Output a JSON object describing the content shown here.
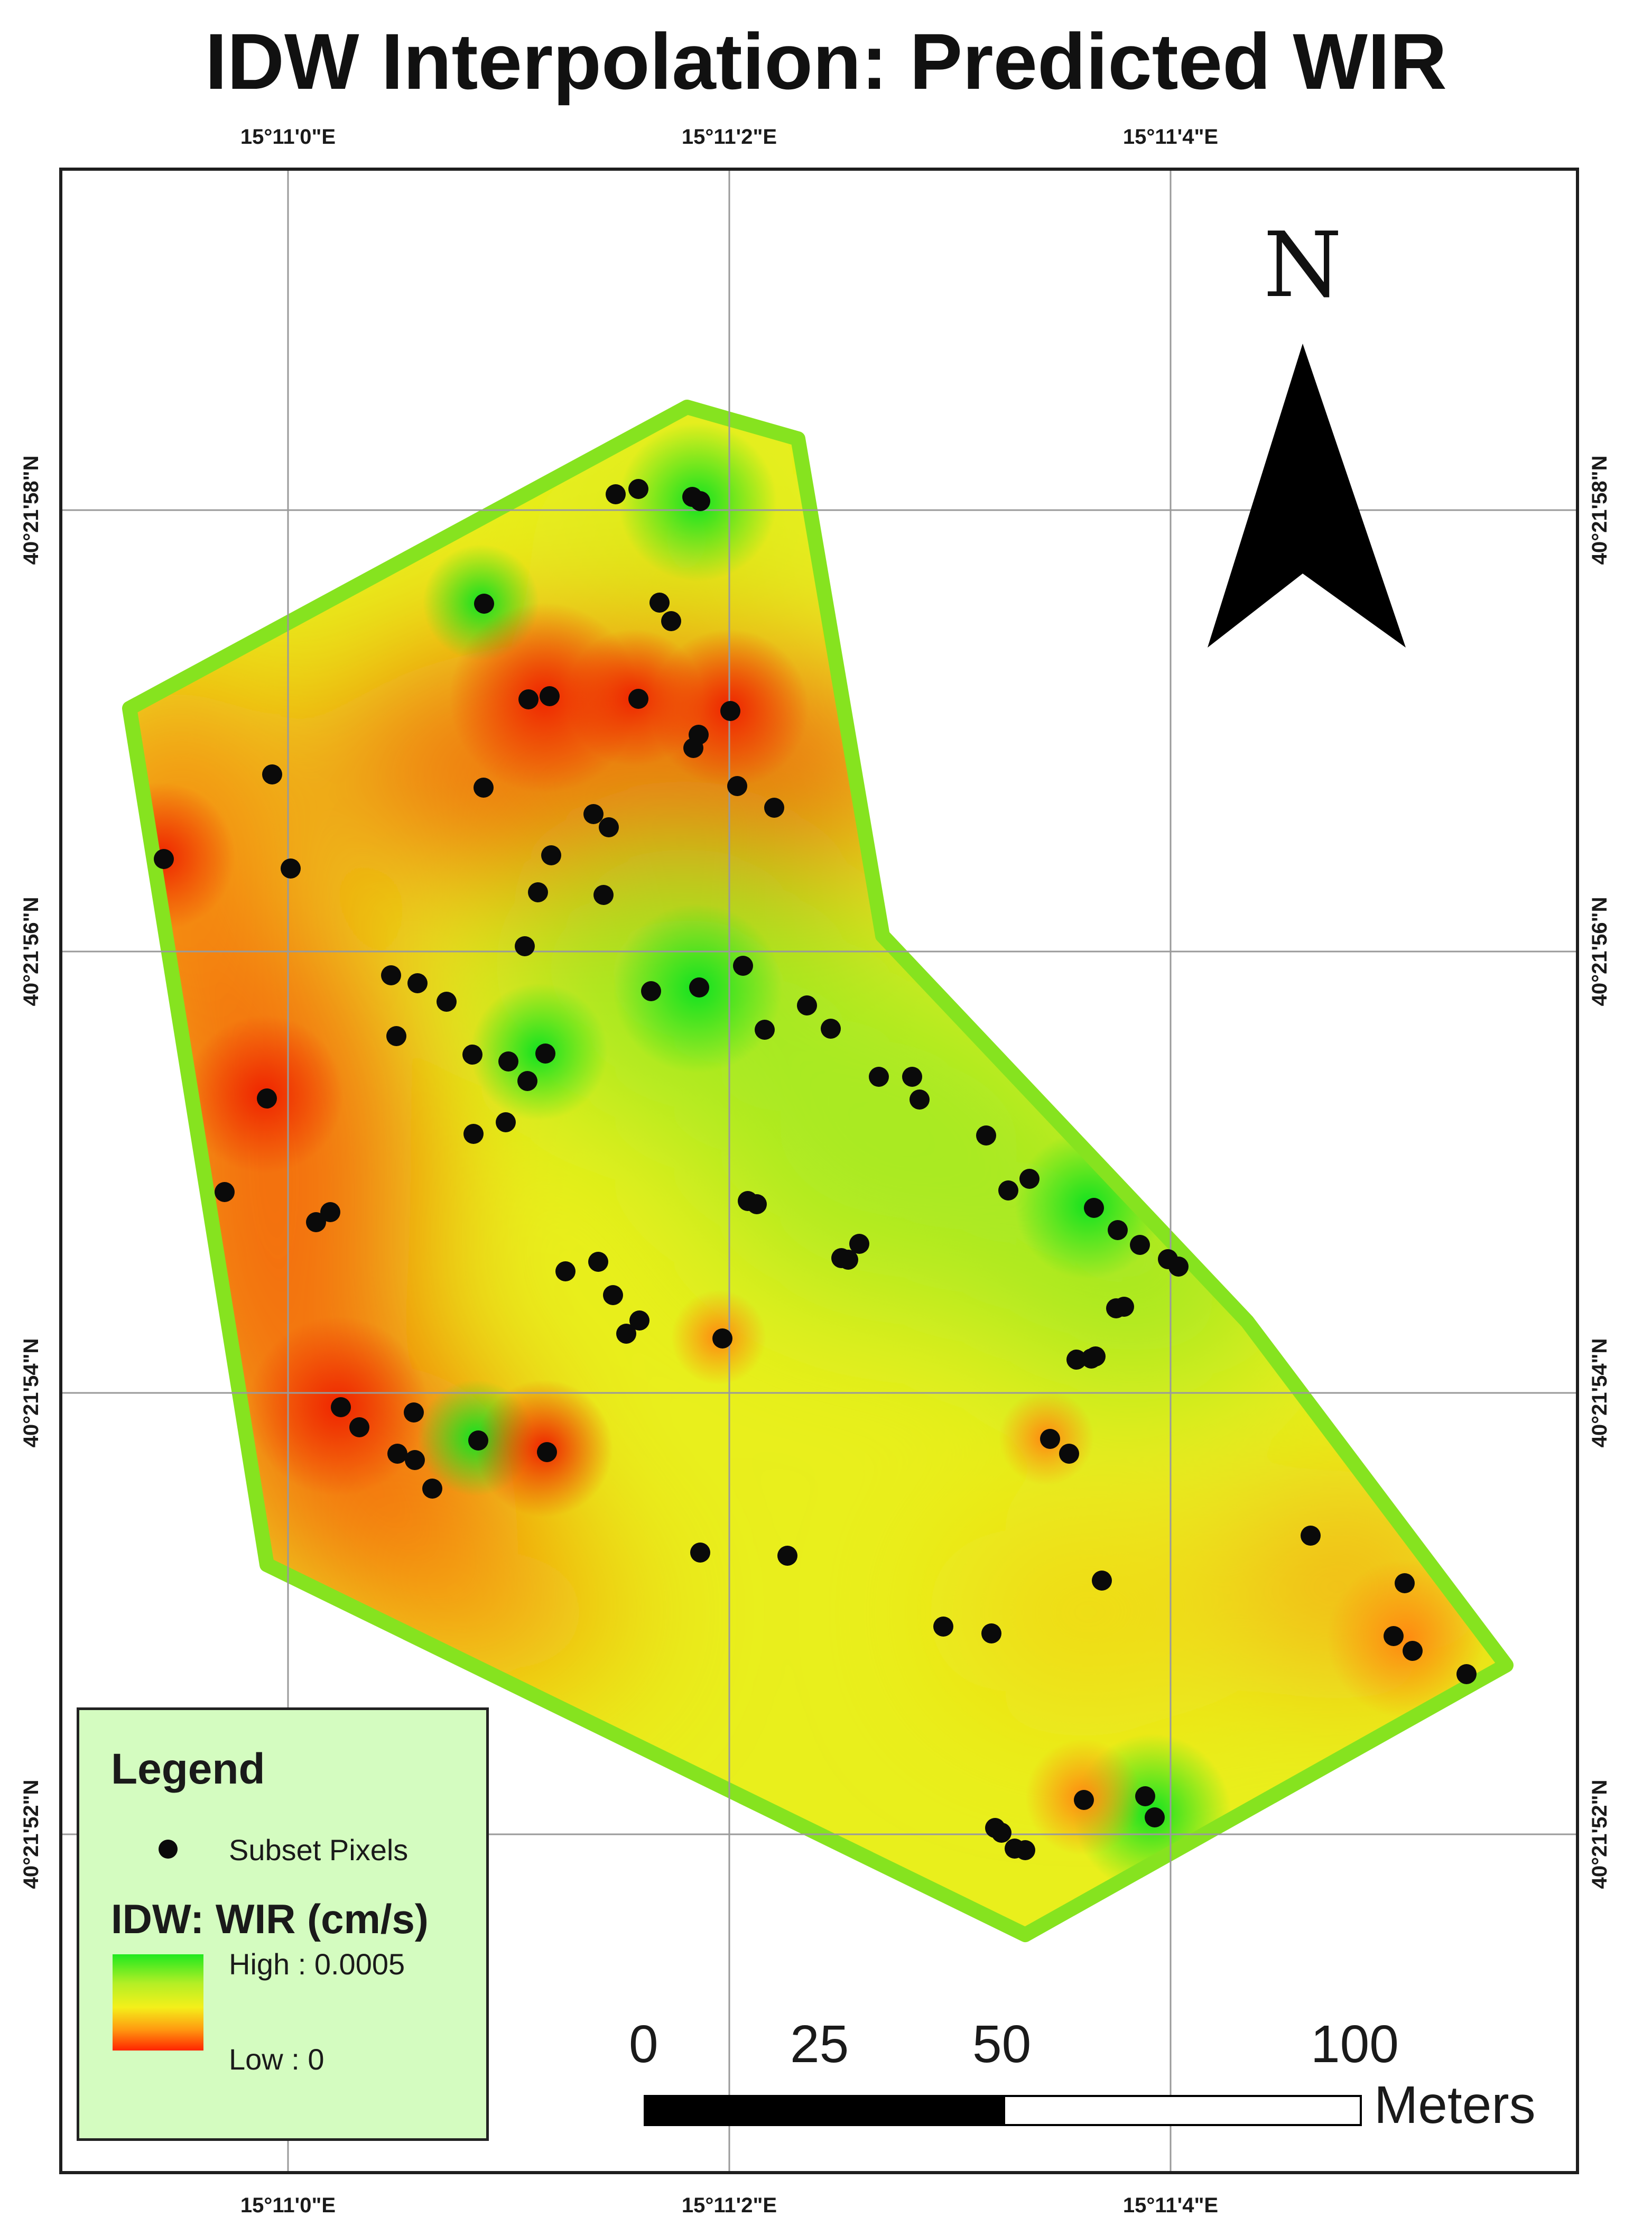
{
  "title": "IDW Interpolation: Predicted WIR",
  "grid": {
    "top_labels": [
      "15°11'0\"E",
      "15°11'2\"E",
      "15°11'4\"E"
    ],
    "bottom_labels": [
      "15°11'0\"E",
      "15°11'2\"E",
      "15°11'4\"E"
    ],
    "left_labels": [
      "40°21'58\"N",
      "40°21'56\"N",
      "40°21'54\"N",
      "40°21'52\"N"
    ],
    "right_labels": [
      "40°21'58\"N",
      "40°21'56\"N",
      "40°21'54\"N",
      "40°21'52\"N"
    ]
  },
  "north_arrow": {
    "label": "N",
    "icon": "north-arrow-icon"
  },
  "legend": {
    "title": "Legend",
    "point_label": "Subset Pixels",
    "raster_title": "IDW: WIR (cm/s)",
    "high_label": "High : 0.0005",
    "low_label": "Low : 0",
    "ramp_colors": [
      "#1fe81f",
      "#b3ef25",
      "#f4f01a",
      "#ff9a10",
      "#ff2400"
    ]
  },
  "scale_bar": {
    "labels": [
      "0",
      "25",
      "50",
      "100"
    ],
    "unit": "Meters"
  },
  "colors": {
    "boundary": "#86e31f",
    "point": "#0a0a0a",
    "grid": "#9a9a9a",
    "frame": "#1e1e1e"
  }
}
